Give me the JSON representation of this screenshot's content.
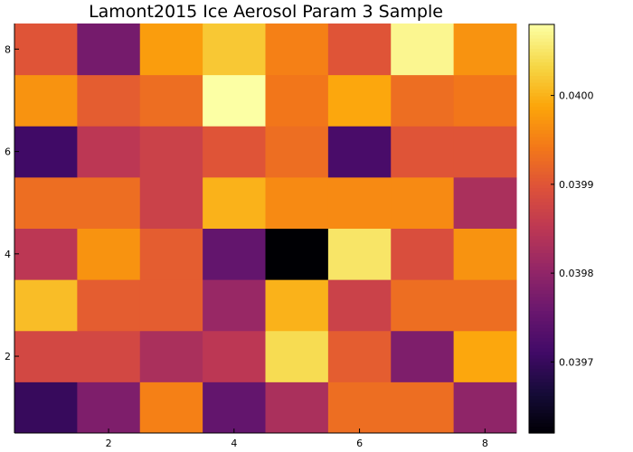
{
  "chart_data": {
    "type": "heatmap",
    "title": "Lamont2015 Ice Aerosol Param 3 Sample",
    "xlabel": "",
    "ylabel": "",
    "x": [
      1,
      2,
      3,
      4,
      5,
      6,
      7,
      8
    ],
    "y": [
      1,
      2,
      3,
      4,
      5,
      6,
      7,
      8
    ],
    "xlim": [
      0.5,
      8.5
    ],
    "ylim": [
      0.5,
      8.5
    ],
    "x_ticks": [
      2,
      4,
      6,
      8
    ],
    "y_ticks": [
      2,
      4,
      6,
      8
    ],
    "colormap": "inferno",
    "clim": [
      0.03962,
      0.04008
    ],
    "colorbar_ticks": [
      {
        "value": 0.0397,
        "label": "0.0397"
      },
      {
        "value": 0.0398,
        "label": "0.0398"
      },
      {
        "value": 0.0399,
        "label": "0.0399"
      },
      {
        "value": 0.04,
        "label": "0.0400"
      }
    ],
    "grid": false,
    "z": [
      [
        0.0397,
        0.03978,
        0.03995,
        0.03975,
        0.03983,
        0.03993,
        0.03993,
        0.0398
      ],
      [
        0.03988,
        0.03988,
        0.03983,
        0.03985,
        0.04004,
        0.03991,
        0.03978,
        0.03999
      ],
      [
        0.04001,
        0.03991,
        0.03991,
        0.03981,
        0.04,
        0.03987,
        0.03993,
        0.03993
      ],
      [
        0.03985,
        0.03997,
        0.03991,
        0.03975,
        0.03962,
        0.04005,
        0.03989,
        0.03997
      ],
      [
        0.03993,
        0.03993,
        0.03987,
        0.04,
        0.03996,
        0.03996,
        0.03996,
        0.03983
      ],
      [
        0.03971,
        0.03985,
        0.03987,
        0.0399,
        0.03993,
        0.03972,
        0.0399,
        0.0399
      ],
      [
        0.03997,
        0.03991,
        0.03993,
        0.04008,
        0.03994,
        0.03999,
        0.03993,
        0.03994
      ],
      [
        0.0399,
        0.03977,
        0.03998,
        0.04002,
        0.03995,
        0.0399,
        0.04007,
        0.03997
      ]
    ]
  }
}
